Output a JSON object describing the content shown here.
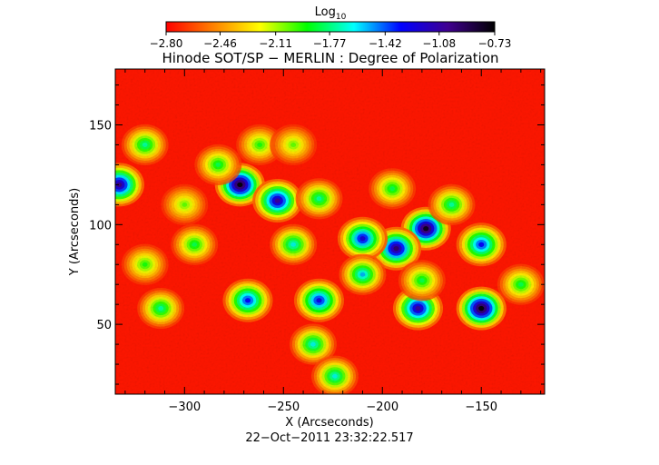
{
  "colorbar": {
    "label_main": "Log",
    "label_sub": "10",
    "tick_values": [
      -2.8,
      -2.46,
      -2.11,
      -1.77,
      -1.42,
      -1.08,
      -0.73
    ],
    "tick_labels": [
      "−2.80",
      "−2.46",
      "−2.11",
      "−1.77",
      "−1.42",
      "−1.08",
      "−0.73"
    ],
    "range": [
      -2.8,
      -0.73
    ],
    "colormap": "rainbow (red at low values, through orange, yellow, green, cyan, blue, to violet/black at high values)",
    "stops": [
      "#ff0000",
      "#ff8000",
      "#ffff00",
      "#00ff00",
      "#00ffff",
      "#0000ff",
      "#400090",
      "#000000"
    ]
  },
  "chart_data": {
    "type": "heatmap",
    "title": "Hinode SOT/SP − MERLIN : Degree of Polarization",
    "subtitle": "22−Oct−2011 23:32:22.517",
    "xlabel": "X (Arcseconds)",
    "ylabel": "Y (Arcseconds)",
    "xlim": [
      -335,
      -118
    ],
    "ylim": [
      15,
      178
    ],
    "xticks": [
      -300,
      -250,
      -200,
      -150
    ],
    "xtick_labels": [
      "−300",
      "−250",
      "−200",
      "−150"
    ],
    "yticks": [
      50,
      100,
      150
    ],
    "ytick_labels": [
      "50",
      "100",
      "150"
    ],
    "value_scale": "log10",
    "value_range": [
      -2.8,
      -0.73
    ],
    "background_level": -2.75,
    "features": [
      {
        "kind": "pore",
        "x": -272,
        "y": 120,
        "value": -0.75
      },
      {
        "kind": "pore",
        "x": -253,
        "y": 112,
        "value": -1.05
      },
      {
        "kind": "pore",
        "x": -178,
        "y": 98,
        "value": -0.78
      },
      {
        "kind": "pore",
        "x": -193,
        "y": 88,
        "value": -0.95
      },
      {
        "kind": "pore",
        "x": -150,
        "y": 58,
        "value": -0.74
      },
      {
        "kind": "pore",
        "x": -182,
        "y": 58,
        "value": -1.05
      },
      {
        "kind": "pore",
        "x": -333,
        "y": 120,
        "value": -1.0
      },
      {
        "kind": "pore",
        "x": -232,
        "y": 62,
        "value": -1.25
      },
      {
        "kind": "pore",
        "x": -210,
        "y": 93,
        "value": -1.2
      },
      {
        "kind": "pore",
        "x": -150,
        "y": 90,
        "value": -1.3
      },
      {
        "kind": "pore",
        "x": -268,
        "y": 62,
        "value": -1.3
      },
      {
        "kind": "network",
        "x": -283,
        "y": 130,
        "value": -1.8
      },
      {
        "kind": "network",
        "x": -320,
        "y": 140,
        "value": -1.7
      },
      {
        "kind": "network",
        "x": -232,
        "y": 113,
        "value": -1.7
      },
      {
        "kind": "network",
        "x": -245,
        "y": 90,
        "value": -1.6
      },
      {
        "kind": "network",
        "x": -210,
        "y": 75,
        "value": -1.5
      },
      {
        "kind": "network",
        "x": -262,
        "y": 140,
        "value": -1.9
      },
      {
        "kind": "network",
        "x": -195,
        "y": 118,
        "value": -1.8
      },
      {
        "kind": "network",
        "x": -165,
        "y": 110,
        "value": -1.7
      },
      {
        "kind": "network",
        "x": -295,
        "y": 90,
        "value": -1.8
      },
      {
        "kind": "network",
        "x": -320,
        "y": 80,
        "value": -1.9
      },
      {
        "kind": "network",
        "x": -312,
        "y": 58,
        "value": -1.7
      },
      {
        "kind": "network",
        "x": -235,
        "y": 40,
        "value": -1.6
      },
      {
        "kind": "network",
        "x": -224,
        "y": 24,
        "value": -1.6
      },
      {
        "kind": "network",
        "x": -180,
        "y": 72,
        "value": -1.8
      },
      {
        "kind": "network",
        "x": -130,
        "y": 70,
        "value": -1.8
      },
      {
        "kind": "network",
        "x": -245,
        "y": 140,
        "value": -2.0
      },
      {
        "kind": "network",
        "x": -300,
        "y": 110,
        "value": -2.0
      }
    ]
  }
}
